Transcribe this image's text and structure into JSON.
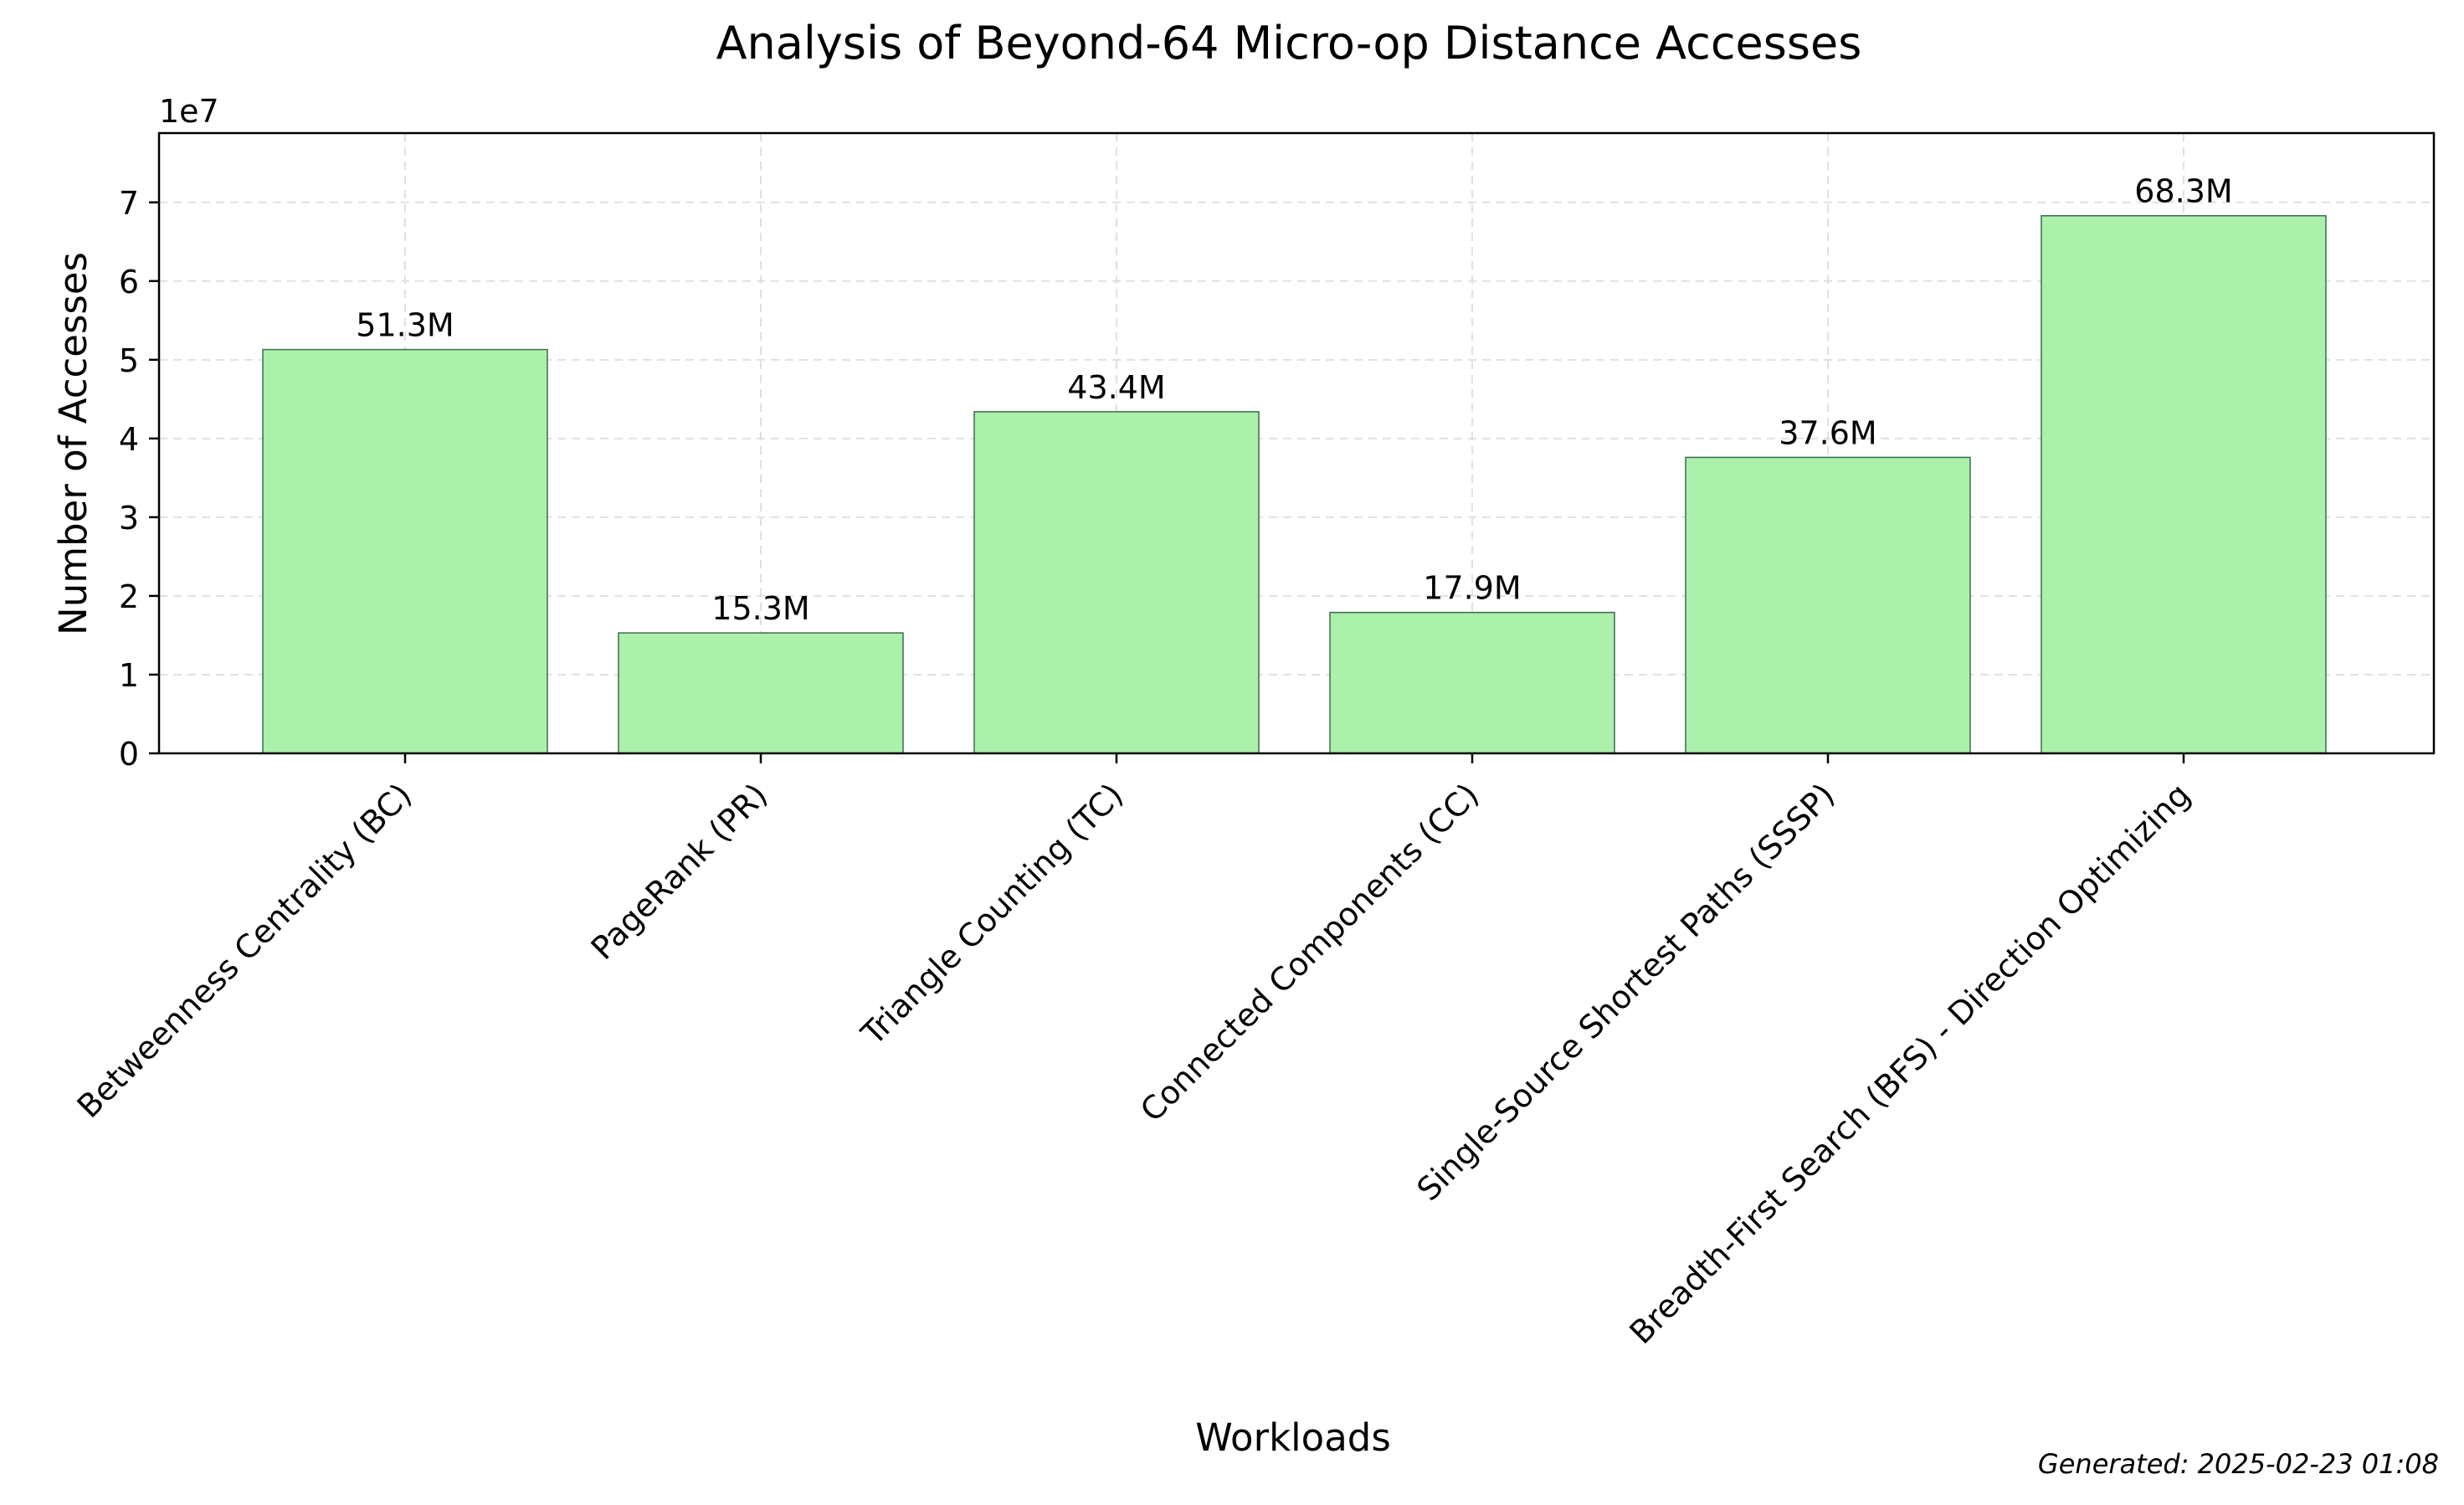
{
  "chart_data": {
    "type": "bar",
    "title": "Analysis of Beyond-64 Micro-op Distance Accesses",
    "xlabel": "Workloads",
    "ylabel": "Number of Accesses",
    "y_offset_label": "1e7",
    "y_scale": 10000000,
    "ylim": [
      0,
      78800000
    ],
    "yticks": [
      0,
      1,
      2,
      3,
      4,
      5,
      6,
      7
    ],
    "grid": true,
    "categories": [
      "Betweenness Centrality (BC)",
      "PageRank (PR)",
      "Triangle Counting (TC)",
      "Connected Components (CC)",
      "Single-Source Shortest Paths (SSSP)",
      "Breadth-First Search (BFS) - Direction Optimizing"
    ],
    "values": [
      51300000,
      15300000,
      43400000,
      17900000,
      37600000,
      68300000
    ],
    "value_labels": [
      "51.3M",
      "15.3M",
      "43.4M",
      "17.9M",
      "37.6M",
      "68.3M"
    ],
    "bar_color": "#abf0ab",
    "bar_edge_color": "#3d6b4f",
    "footer": "Generated: 2025-02-23 01:08"
  }
}
